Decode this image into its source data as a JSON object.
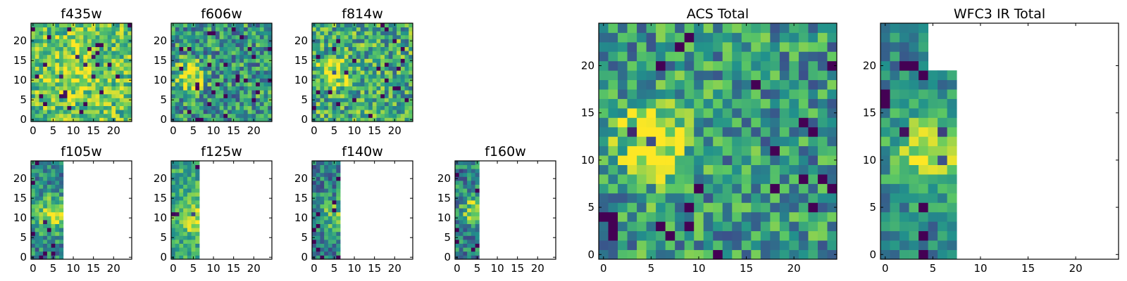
{
  "figure": {
    "colormap": "viridis",
    "colormap_stops": [
      "#440154",
      "#3b528b",
      "#21918c",
      "#5ec962",
      "#fde725"
    ],
    "background": "#ffffff"
  },
  "chart_data": [
    {
      "type": "heatmap",
      "title": "f435w",
      "xticks": [
        "0",
        "5",
        "10",
        "15",
        "20"
      ],
      "yticks": [
        "0",
        "5",
        "10",
        "15",
        "20"
      ],
      "xlim": [
        0,
        25
      ],
      "ylim": [
        0,
        25
      ],
      "grid_size": 25,
      "data_columns": 25,
      "grid": false,
      "seed": 11,
      "base": 0.7,
      "noise": 0.28,
      "blob": {
        "cx": 10,
        "cy": 12,
        "sigma": 5,
        "amp": 0.15
      }
    },
    {
      "type": "heatmap",
      "title": "f606w",
      "xticks": [
        "0",
        "5",
        "10",
        "15",
        "20"
      ],
      "yticks": [
        "0",
        "5",
        "10",
        "15",
        "20"
      ],
      "xlim": [
        0,
        25
      ],
      "ylim": [
        0,
        25
      ],
      "grid_size": 25,
      "data_columns": 25,
      "grid": false,
      "seed": 23,
      "base": 0.52,
      "noise": 0.32,
      "blob": {
        "cx": 4,
        "cy": 11,
        "sigma": 2.5,
        "amp": 0.5
      }
    },
    {
      "type": "heatmap",
      "title": "f814w",
      "xticks": [
        "0",
        "5",
        "10",
        "15",
        "20"
      ],
      "yticks": [
        "0",
        "5",
        "10",
        "15",
        "20"
      ],
      "xlim": [
        0,
        25
      ],
      "ylim": [
        0,
        25
      ],
      "grid_size": 25,
      "data_columns": 25,
      "grid": false,
      "seed": 37,
      "base": 0.6,
      "noise": 0.32,
      "blob": {
        "cx": 5,
        "cy": 12,
        "sigma": 2.5,
        "amp": 0.42
      }
    },
    {
      "type": "heatmap",
      "title": "f105w",
      "xticks": [
        "0",
        "5",
        "10",
        "15",
        "20"
      ],
      "yticks": [
        "0",
        "5",
        "10",
        "15",
        "20"
      ],
      "xlim": [
        0,
        25
      ],
      "ylim": [
        0,
        25
      ],
      "grid_size": 25,
      "data_columns": 8,
      "grid": false,
      "seed": 41,
      "base": 0.45,
      "noise": 0.25,
      "blob": {
        "cx": 5,
        "cy": 11,
        "sigma": 3,
        "amp": 0.5
      }
    },
    {
      "type": "heatmap",
      "title": "f125w",
      "xticks": [
        "0",
        "5",
        "10",
        "15",
        "20"
      ],
      "yticks": [
        "0",
        "5",
        "10",
        "15",
        "20"
      ],
      "xlim": [
        0,
        25
      ],
      "ylim": [
        0,
        25
      ],
      "grid_size": 25,
      "data_columns": 7,
      "grid": false,
      "seed": 53,
      "base": 0.6,
      "noise": 0.22,
      "blob": {
        "cx": 5,
        "cy": 10,
        "sigma": 3,
        "amp": 0.3
      }
    },
    {
      "type": "heatmap",
      "title": "f140w",
      "xticks": [
        "0",
        "5",
        "10",
        "15",
        "20"
      ],
      "yticks": [
        "0",
        "5",
        "10",
        "15",
        "20"
      ],
      "xlim": [
        0,
        25
      ],
      "ylim": [
        0,
        25
      ],
      "grid_size": 25,
      "data_columns": 7,
      "grid": false,
      "seed": 67,
      "base": 0.42,
      "noise": 0.25,
      "blob": {
        "cx": 5,
        "cy": 11,
        "sigma": 3,
        "amp": 0.3
      }
    },
    {
      "type": "heatmap",
      "title": "f160w",
      "xticks": [
        "0",
        "5",
        "10",
        "15",
        "20"
      ],
      "yticks": [
        "0",
        "5",
        "10",
        "15",
        "20"
      ],
      "xlim": [
        0,
        25
      ],
      "ylim": [
        0,
        25
      ],
      "grid_size": 25,
      "data_columns": 6,
      "grid": false,
      "seed": 79,
      "base": 0.45,
      "noise": 0.28,
      "blob": {
        "cx": 5,
        "cy": 12,
        "sigma": 2.5,
        "amp": 0.45
      }
    },
    {
      "type": "heatmap",
      "title": "ACS Total",
      "xticks": [
        "0",
        "5",
        "10",
        "15",
        "20"
      ],
      "yticks": [
        "0",
        "5",
        "10",
        "15",
        "20"
      ],
      "xlim": [
        0,
        25
      ],
      "ylim": [
        0,
        25
      ],
      "grid_size": 25,
      "data_columns": 25,
      "grid": false,
      "seed": 97,
      "base": 0.52,
      "noise": 0.3,
      "blob": {
        "cx": 5,
        "cy": 12,
        "sigma": 3,
        "amp": 0.45
      }
    },
    {
      "type": "heatmap",
      "title": "WFC3 IR Total",
      "xticks": [
        "0",
        "5",
        "10",
        "15",
        "20"
      ],
      "yticks": [
        "0",
        "5",
        "10",
        "15",
        "20"
      ],
      "xlim": [
        0,
        25
      ],
      "ylim": [
        0,
        25
      ],
      "grid_size": 25,
      "data_columns": 8,
      "grid": false,
      "seed": 113,
      "base": 0.45,
      "noise": 0.2,
      "blob": {
        "cx": 5,
        "cy": 11,
        "sigma": 3,
        "amp": 0.5
      },
      "column_heights": [
        25,
        25,
        25,
        25,
        25,
        20,
        20,
        20
      ]
    }
  ]
}
